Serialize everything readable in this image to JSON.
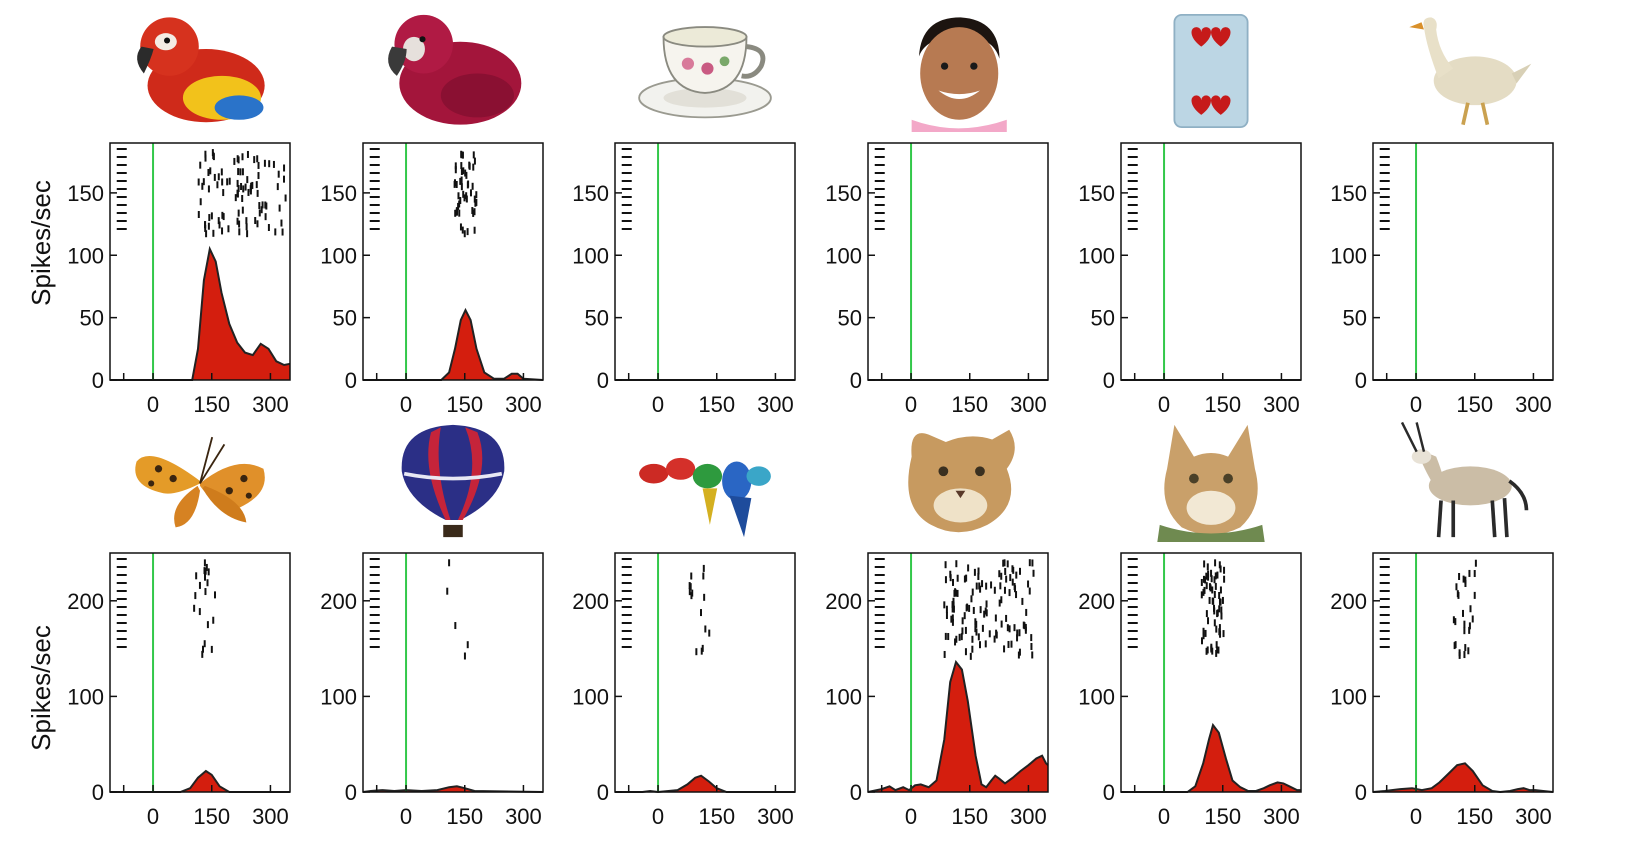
{
  "figure": {
    "ylabel": "Spikes/sec",
    "colors": {
      "response": "#d41e0e",
      "outline": "#222222",
      "onset_line": "#33c84a",
      "raster": "#111111"
    }
  },
  "chart_data": [
    {
      "type": "area",
      "stimulus": "red parrot",
      "stimulus_icon": "parrot-icon",
      "ylim": [
        0,
        190
      ],
      "yticks": [
        0,
        50,
        100,
        150
      ],
      "xlim": [
        -110,
        350
      ],
      "xticks": [
        0,
        150,
        300
      ],
      "curve": [
        [
          -110,
          0
        ],
        [
          100,
          0
        ],
        [
          115,
          25
        ],
        [
          130,
          80
        ],
        [
          145,
          105
        ],
        [
          160,
          95
        ],
        [
          175,
          70
        ],
        [
          195,
          45
        ],
        [
          215,
          30
        ],
        [
          235,
          22
        ],
        [
          255,
          20
        ],
        [
          275,
          29
        ],
        [
          295,
          25
        ],
        [
          315,
          15
        ],
        [
          335,
          12
        ],
        [
          350,
          13
        ]
      ]
    },
    {
      "type": "area",
      "stimulus": "crimson parrot",
      "stimulus_icon": "parrot-icon",
      "ylim": [
        0,
        190
      ],
      "yticks": [
        0,
        50,
        100,
        150
      ],
      "xlim": [
        -110,
        350
      ],
      "xticks": [
        0,
        150,
        300
      ],
      "curve": [
        [
          -110,
          0
        ],
        [
          90,
          0
        ],
        [
          110,
          6
        ],
        [
          125,
          25
        ],
        [
          140,
          48
        ],
        [
          152,
          56
        ],
        [
          165,
          48
        ],
        [
          180,
          25
        ],
        [
          200,
          6
        ],
        [
          225,
          1
        ],
        [
          250,
          1
        ],
        [
          270,
          5
        ],
        [
          285,
          5
        ],
        [
          300,
          1
        ],
        [
          350,
          0
        ]
      ]
    },
    {
      "type": "area",
      "stimulus": "teacup",
      "stimulus_icon": "teacup-icon",
      "ylim": [
        0,
        190
      ],
      "yticks": [
        0,
        50,
        100,
        150
      ],
      "xlim": [
        -110,
        350
      ],
      "xticks": [
        0,
        150,
        300
      ],
      "curve": [
        [
          -110,
          0
        ],
        [
          350,
          0
        ]
      ]
    },
    {
      "type": "area",
      "stimulus": "face",
      "stimulus_icon": "face-icon",
      "ylim": [
        0,
        190
      ],
      "yticks": [
        0,
        50,
        100,
        150
      ],
      "xlim": [
        -110,
        350
      ],
      "xticks": [
        0,
        150,
        300
      ],
      "curve": [
        [
          -110,
          0
        ],
        [
          350,
          0
        ]
      ]
    },
    {
      "type": "area",
      "stimulus": "playing card",
      "stimulus_icon": "card-icon",
      "ylim": [
        0,
        190
      ],
      "yticks": [
        0,
        50,
        100,
        150
      ],
      "xlim": [
        -110,
        350
      ],
      "xticks": [
        0,
        150,
        300
      ],
      "curve": [
        [
          -110,
          0
        ],
        [
          350,
          0
        ]
      ]
    },
    {
      "type": "area",
      "stimulus": "goose",
      "stimulus_icon": "goose-icon",
      "ylim": [
        0,
        190
      ],
      "yticks": [
        0,
        50,
        100,
        150
      ],
      "xlim": [
        -110,
        350
      ],
      "xticks": [
        0,
        150,
        300
      ],
      "curve": [
        [
          -110,
          0
        ],
        [
          350,
          0
        ]
      ]
    },
    {
      "type": "area",
      "stimulus": "butterfly",
      "stimulus_icon": "butterfly-icon",
      "ylim": [
        0,
        250
      ],
      "yticks": [
        0,
        100,
        200
      ],
      "xlim": [
        -110,
        350
      ],
      "xticks": [
        0,
        150,
        300
      ],
      "curve": [
        [
          -110,
          0
        ],
        [
          70,
          0
        ],
        [
          95,
          4
        ],
        [
          115,
          15
        ],
        [
          135,
          22
        ],
        [
          150,
          18
        ],
        [
          170,
          6
        ],
        [
          195,
          0
        ],
        [
          350,
          0
        ]
      ]
    },
    {
      "type": "area",
      "stimulus": "hot air balloon",
      "stimulus_icon": "balloon-icon",
      "ylim": [
        0,
        250
      ],
      "yticks": [
        0,
        100,
        200
      ],
      "xlim": [
        -110,
        350
      ],
      "xticks": [
        0,
        150,
        300
      ],
      "curve": [
        [
          -110,
          0
        ],
        [
          -90,
          1
        ],
        [
          -60,
          2
        ],
        [
          -30,
          1
        ],
        [
          0,
          2
        ],
        [
          40,
          1
        ],
        [
          80,
          2
        ],
        [
          110,
          5
        ],
        [
          130,
          6
        ],
        [
          150,
          4
        ],
        [
          175,
          1
        ],
        [
          350,
          0
        ]
      ]
    },
    {
      "type": "area",
      "stimulus": "parrots",
      "stimulus_icon": "parrots-icon",
      "ylim": [
        0,
        250
      ],
      "yticks": [
        0,
        100,
        200
      ],
      "xlim": [
        -110,
        350
      ],
      "xticks": [
        0,
        150,
        300
      ],
      "curve": [
        [
          -110,
          0
        ],
        [
          -40,
          0
        ],
        [
          -20,
          1
        ],
        [
          0,
          0
        ],
        [
          50,
          2
        ],
        [
          75,
          8
        ],
        [
          95,
          15
        ],
        [
          110,
          17
        ],
        [
          130,
          11
        ],
        [
          150,
          4
        ],
        [
          175,
          0
        ],
        [
          350,
          0
        ]
      ]
    },
    {
      "type": "area",
      "stimulus": "cougar",
      "stimulus_icon": "cougar-icon",
      "ylim": [
        0,
        250
      ],
      "yticks": [
        0,
        100,
        200
      ],
      "xlim": [
        -110,
        350
      ],
      "xticks": [
        0,
        150,
        300
      ],
      "curve": [
        [
          -110,
          0
        ],
        [
          -75,
          3
        ],
        [
          -55,
          6
        ],
        [
          -40,
          2
        ],
        [
          -20,
          5
        ],
        [
          -5,
          2
        ],
        [
          10,
          7
        ],
        [
          25,
          8
        ],
        [
          45,
          5
        ],
        [
          65,
          12
        ],
        [
          85,
          55
        ],
        [
          100,
          115
        ],
        [
          115,
          136
        ],
        [
          130,
          128
        ],
        [
          145,
          95
        ],
        [
          165,
          38
        ],
        [
          180,
          8
        ],
        [
          192,
          5
        ],
        [
          205,
          12
        ],
        [
          215,
          17
        ],
        [
          225,
          14
        ],
        [
          240,
          9
        ],
        [
          260,
          15
        ],
        [
          280,
          22
        ],
        [
          300,
          28
        ],
        [
          320,
          35
        ],
        [
          335,
          38
        ],
        [
          345,
          30
        ],
        [
          350,
          28
        ]
      ]
    },
    {
      "type": "area",
      "stimulus": "caracal",
      "stimulus_icon": "caracal-icon",
      "ylim": [
        0,
        250
      ],
      "yticks": [
        0,
        100,
        200
      ],
      "xlim": [
        -110,
        350
      ],
      "xticks": [
        0,
        150,
        300
      ],
      "curve": [
        [
          -110,
          0
        ],
        [
          60,
          0
        ],
        [
          80,
          6
        ],
        [
          100,
          30
        ],
        [
          115,
          55
        ],
        [
          125,
          70
        ],
        [
          140,
          62
        ],
        [
          158,
          35
        ],
        [
          175,
          12
        ],
        [
          195,
          5
        ],
        [
          215,
          1
        ],
        [
          235,
          1
        ],
        [
          255,
          4
        ],
        [
          270,
          7
        ],
        [
          290,
          10
        ],
        [
          305,
          9
        ],
        [
          320,
          6
        ],
        [
          340,
          2
        ],
        [
          350,
          2
        ]
      ]
    },
    {
      "type": "area",
      "stimulus": "oryx",
      "stimulus_icon": "oryx-icon",
      "ylim": [
        0,
        250
      ],
      "yticks": [
        0,
        100,
        200
      ],
      "xlim": [
        -110,
        350
      ],
      "xticks": [
        0,
        150,
        300
      ],
      "curve": [
        [
          -110,
          0
        ],
        [
          -80,
          1
        ],
        [
          -40,
          3
        ],
        [
          -10,
          4
        ],
        [
          15,
          2
        ],
        [
          40,
          4
        ],
        [
          60,
          10
        ],
        [
          85,
          20
        ],
        [
          105,
          28
        ],
        [
          125,
          30
        ],
        [
          145,
          22
        ],
        [
          170,
          7
        ],
        [
          195,
          1
        ],
        [
          215,
          0
        ],
        [
          240,
          1
        ],
        [
          260,
          3
        ],
        [
          275,
          4
        ],
        [
          290,
          2
        ],
        [
          305,
          2
        ],
        [
          325,
          1
        ],
        [
          350,
          0
        ]
      ]
    }
  ]
}
